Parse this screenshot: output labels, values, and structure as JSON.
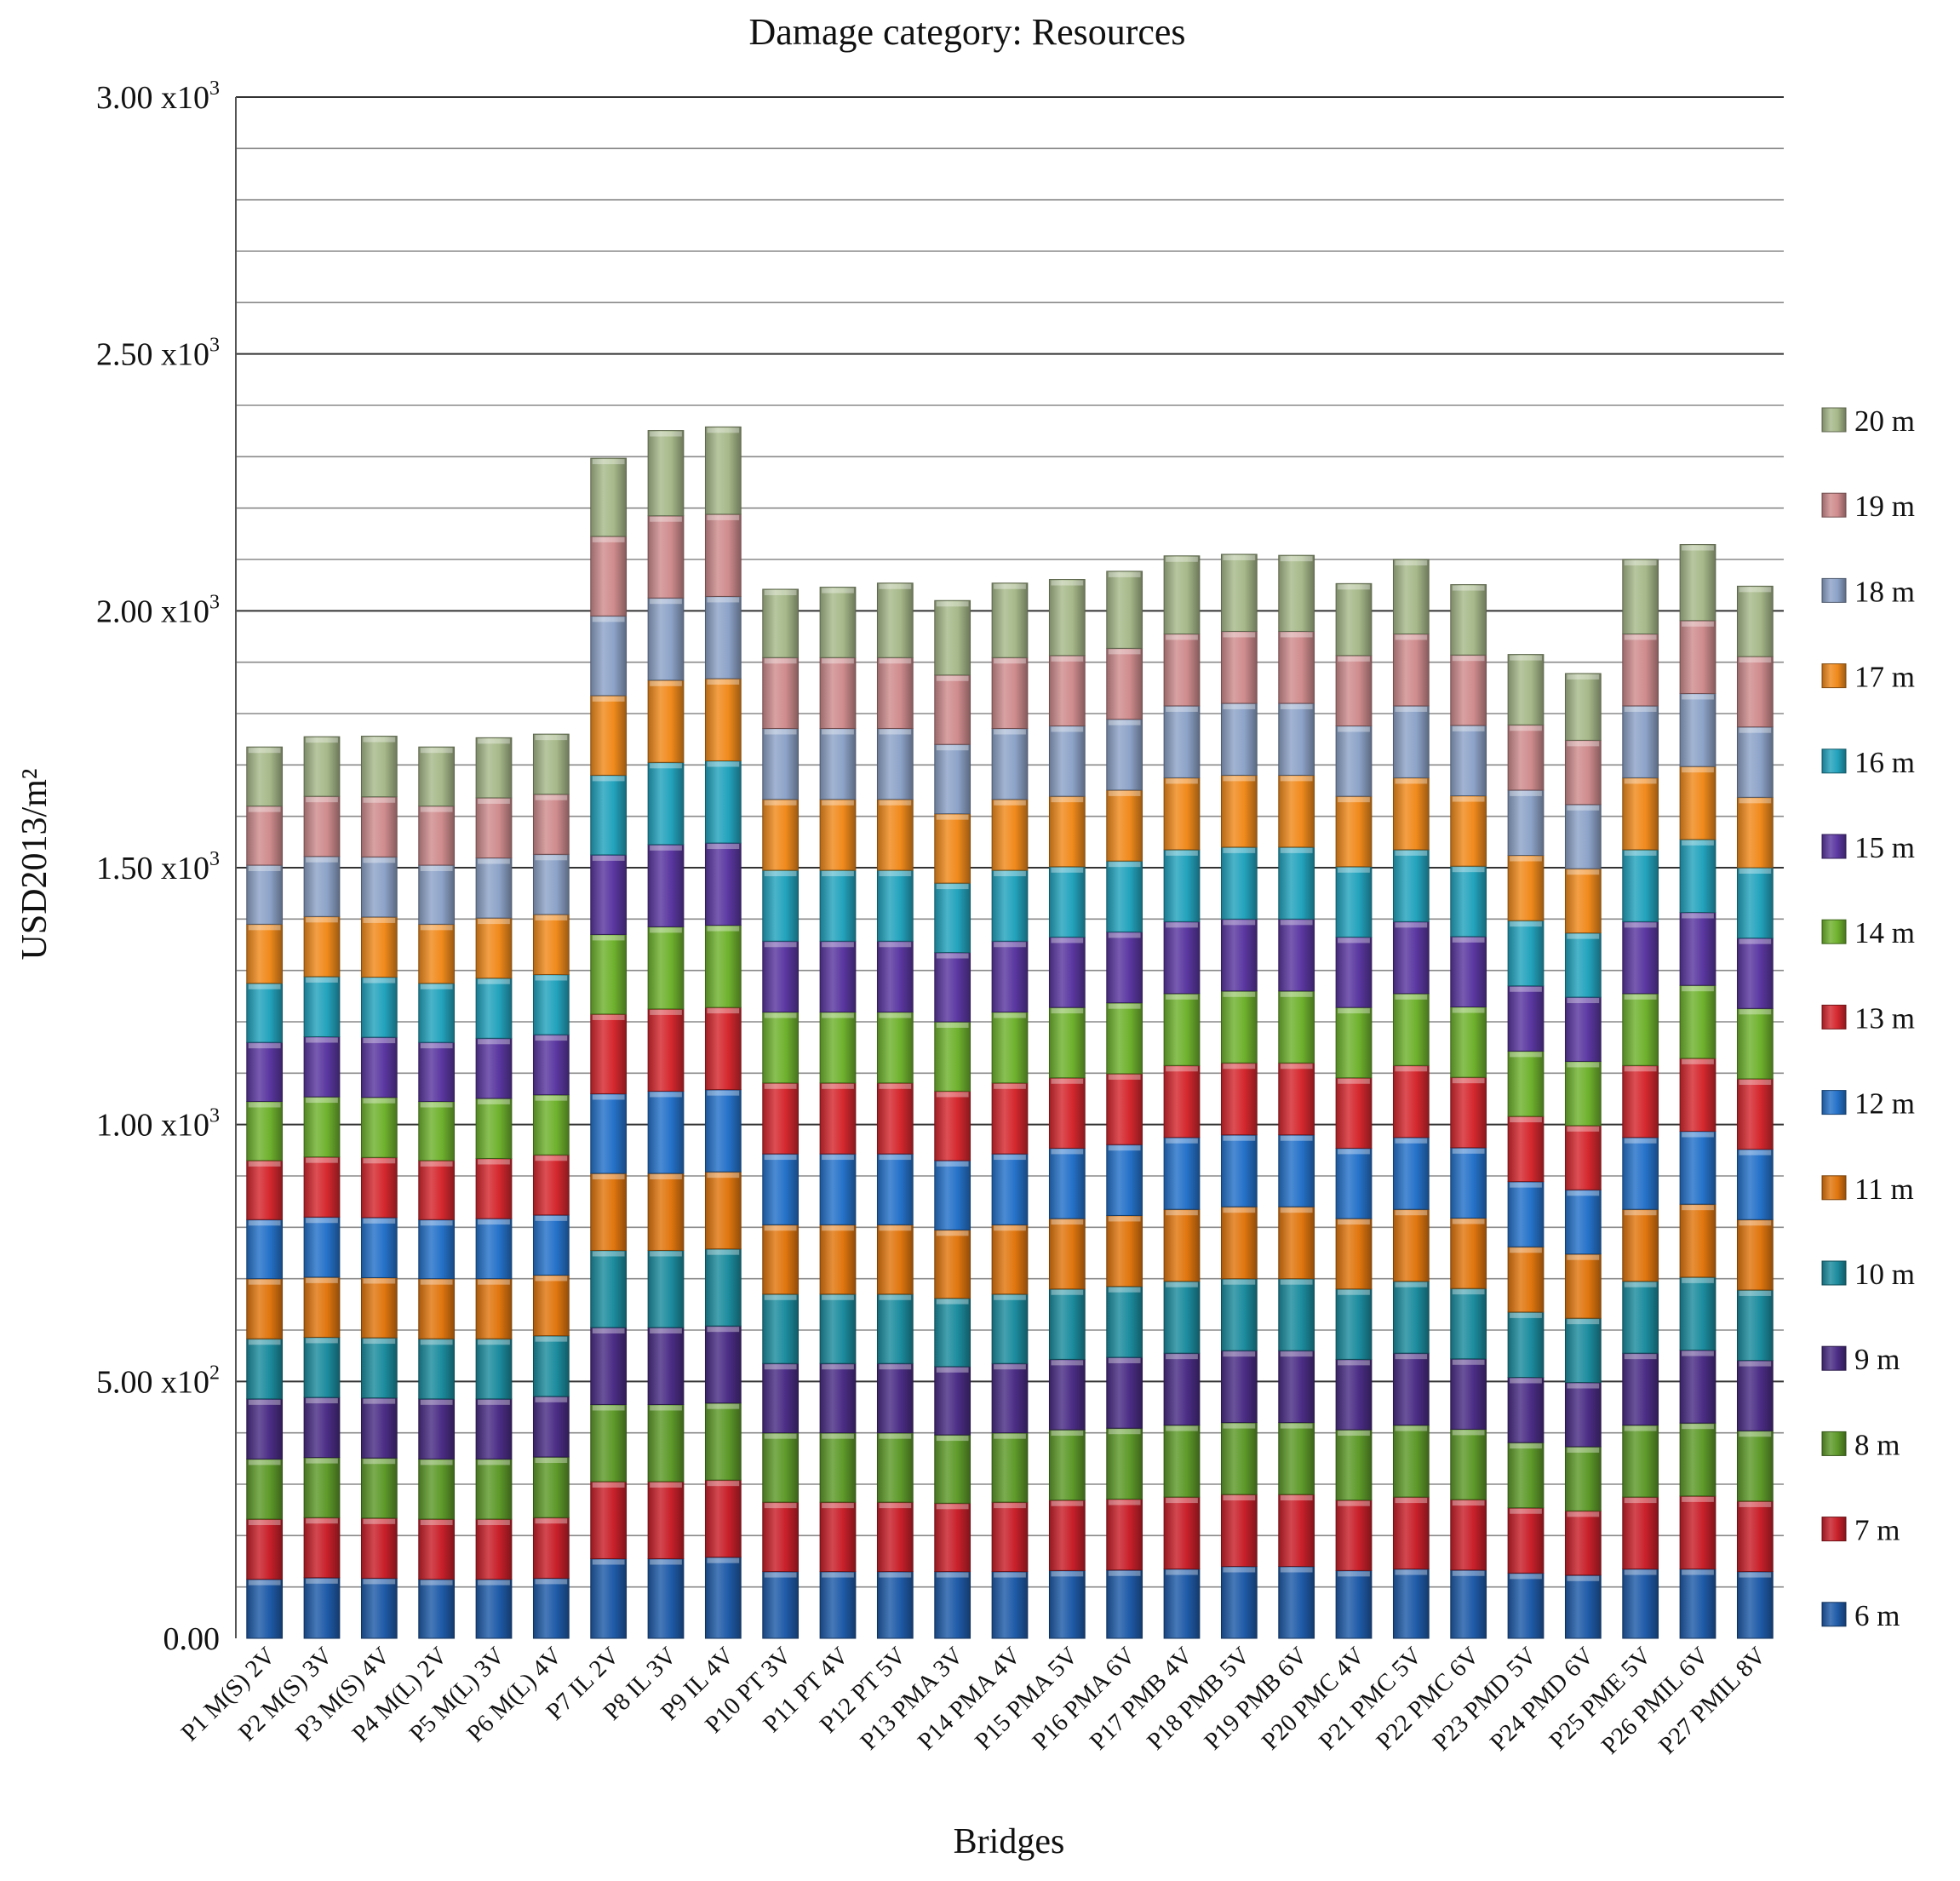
{
  "chart_data": {
    "type": "bar",
    "stacked": true,
    "title": "Damage category: Resources",
    "xlabel": "Bridges",
    "ylabel": "USD2013/m²",
    "ylim": [
      0,
      3000
    ],
    "yticks": [
      {
        "value": 0,
        "base": "0.00",
        "exp": ""
      },
      {
        "value": 500,
        "base": "5.00 x10",
        "exp": "2"
      },
      {
        "value": 1000,
        "base": "1.00 x10",
        "exp": "3"
      },
      {
        "value": 1500,
        "base": "1.50 x10",
        "exp": "3"
      },
      {
        "value": 2000,
        "base": "2.00 x10",
        "exp": "3"
      },
      {
        "value": 2500,
        "base": "2.50 x10",
        "exp": "3"
      },
      {
        "value": 3000,
        "base": "3.00 x10",
        "exp": "3"
      }
    ],
    "minor_grid_step": 100,
    "grid": true,
    "legend_position": "right",
    "categories": [
      "P1 M(S) 2V",
      "P2 M(S) 3V",
      "P3 M(S) 4V",
      "P4 M(L) 2V",
      "P5 M(L) 3V",
      "P6 M(L) 4V",
      "P7 IL 2V",
      "P8 IL 3V",
      "P9 IL 4V",
      "P10 PT 3V",
      "P11 PT 4V",
      "P12 PT 5V",
      "P13 PMA 3V",
      "P14 PMA 4V",
      "P15 PMA 5V",
      "P16 PMA 6V",
      "P17 PMB 4V",
      "P18 PMB 5V",
      "P19 PMB 6V",
      "P20 PMC 4V",
      "P21 PMC 5V",
      "P22 PMC 6V",
      "P23 PMD 5V",
      "P24 PMD 6V",
      "P25 PME 5V",
      "P26 PMIL 6V",
      "P27 PMIL 8V"
    ],
    "series": [
      {
        "name": "6 m",
        "color": "#1f5ba8",
        "values": [
          115,
          118,
          117,
          115,
          115,
          117,
          155,
          155,
          158,
          130,
          130,
          130,
          130,
          130,
          132,
          133,
          135,
          140,
          140,
          132,
          135,
          133,
          127,
          123,
          135,
          135,
          130
        ]
      },
      {
        "name": "7 m",
        "color": "#c8202a",
        "values": [
          117,
          117,
          117,
          117,
          117,
          118,
          150,
          150,
          150,
          135,
          135,
          135,
          133,
          135,
          137,
          138,
          140,
          140,
          140,
          137,
          140,
          137,
          127,
          125,
          140,
          142,
          137
        ]
      },
      {
        "name": "8 m",
        "color": "#5e9a2a",
        "values": [
          117,
          117,
          117,
          117,
          117,
          118,
          150,
          150,
          150,
          135,
          135,
          135,
          133,
          135,
          137,
          138,
          140,
          140,
          140,
          137,
          140,
          137,
          127,
          125,
          140,
          142,
          137
        ]
      },
      {
        "name": "9 m",
        "color": "#4b2d85",
        "values": [
          117,
          117,
          117,
          117,
          117,
          118,
          150,
          150,
          150,
          135,
          135,
          135,
          133,
          135,
          137,
          138,
          140,
          140,
          140,
          137,
          140,
          137,
          127,
          125,
          140,
          142,
          137
        ]
      },
      {
        "name": "10 m",
        "color": "#1c8c9e",
        "values": [
          117,
          117,
          117,
          117,
          117,
          118,
          150,
          150,
          150,
          135,
          135,
          135,
          133,
          135,
          137,
          138,
          140,
          140,
          140,
          137,
          140,
          137,
          127,
          125,
          140,
          142,
          137
        ]
      },
      {
        "name": "11 m",
        "color": "#e0760f",
        "values": [
          117,
          117,
          117,
          117,
          117,
          118,
          150,
          150,
          150,
          135,
          135,
          135,
          133,
          135,
          137,
          138,
          140,
          140,
          140,
          137,
          140,
          137,
          127,
          125,
          140,
          142,
          137
        ]
      },
      {
        "name": "12 m",
        "color": "#2572c9",
        "values": [
          115,
          117,
          117,
          115,
          117,
          117,
          155,
          160,
          160,
          138,
          138,
          138,
          135,
          138,
          137,
          138,
          140,
          140,
          140,
          137,
          140,
          137,
          127,
          125,
          140,
          142,
          137
        ]
      },
      {
        "name": "13 m",
        "color": "#d4282e",
        "values": [
          115,
          117,
          117,
          115,
          117,
          117,
          155,
          160,
          160,
          138,
          138,
          138,
          135,
          138,
          137,
          138,
          140,
          140,
          140,
          137,
          140,
          137,
          127,
          125,
          140,
          142,
          137
        ]
      },
      {
        "name": "14 m",
        "color": "#6fb22e",
        "values": [
          115,
          117,
          117,
          115,
          117,
          117,
          155,
          160,
          160,
          138,
          138,
          138,
          135,
          138,
          137,
          138,
          140,
          140,
          140,
          137,
          140,
          137,
          127,
          125,
          140,
          142,
          137
        ]
      },
      {
        "name": "15 m",
        "color": "#5a37a0",
        "values": [
          115,
          117,
          117,
          115,
          117,
          117,
          155,
          160,
          160,
          138,
          138,
          138,
          135,
          138,
          137,
          138,
          140,
          140,
          140,
          137,
          140,
          137,
          127,
          125,
          140,
          142,
          137
        ]
      },
      {
        "name": "16 m",
        "color": "#23a3bd",
        "values": [
          115,
          117,
          117,
          115,
          117,
          117,
          155,
          160,
          160,
          138,
          138,
          138,
          135,
          138,
          137,
          138,
          140,
          140,
          140,
          137,
          140,
          137,
          127,
          125,
          140,
          142,
          137
        ]
      },
      {
        "name": "17 m",
        "color": "#f08a1c",
        "values": [
          115,
          117,
          117,
          115,
          117,
          117,
          155,
          160,
          160,
          138,
          138,
          138,
          135,
          138,
          137,
          138,
          140,
          140,
          140,
          137,
          140,
          137,
          127,
          125,
          140,
          142,
          137
        ]
      },
      {
        "name": "18 m",
        "color": "#8da3c8",
        "values": [
          115,
          117,
          117,
          115,
          117,
          117,
          155,
          160,
          160,
          138,
          138,
          138,
          135,
          138,
          137,
          138,
          140,
          140,
          140,
          137,
          140,
          137,
          127,
          125,
          140,
          142,
          137
        ]
      },
      {
        "name": "19 m",
        "color": "#cf8c8e",
        "values": [
          115,
          117,
          117,
          115,
          117,
          117,
          155,
          160,
          160,
          138,
          138,
          138,
          135,
          138,
          137,
          138,
          140,
          140,
          140,
          137,
          140,
          137,
          127,
          125,
          140,
          142,
          137
        ]
      },
      {
        "name": "20 m",
        "color": "#a7b98a",
        "values": [
          115,
          116,
          118,
          115,
          117,
          117,
          152,
          166,
          170,
          133,
          137,
          145,
          145,
          145,
          148,
          150,
          152,
          150,
          148,
          140,
          145,
          137,
          137,
          130,
          145,
          148,
          137
        ]
      }
    ]
  }
}
